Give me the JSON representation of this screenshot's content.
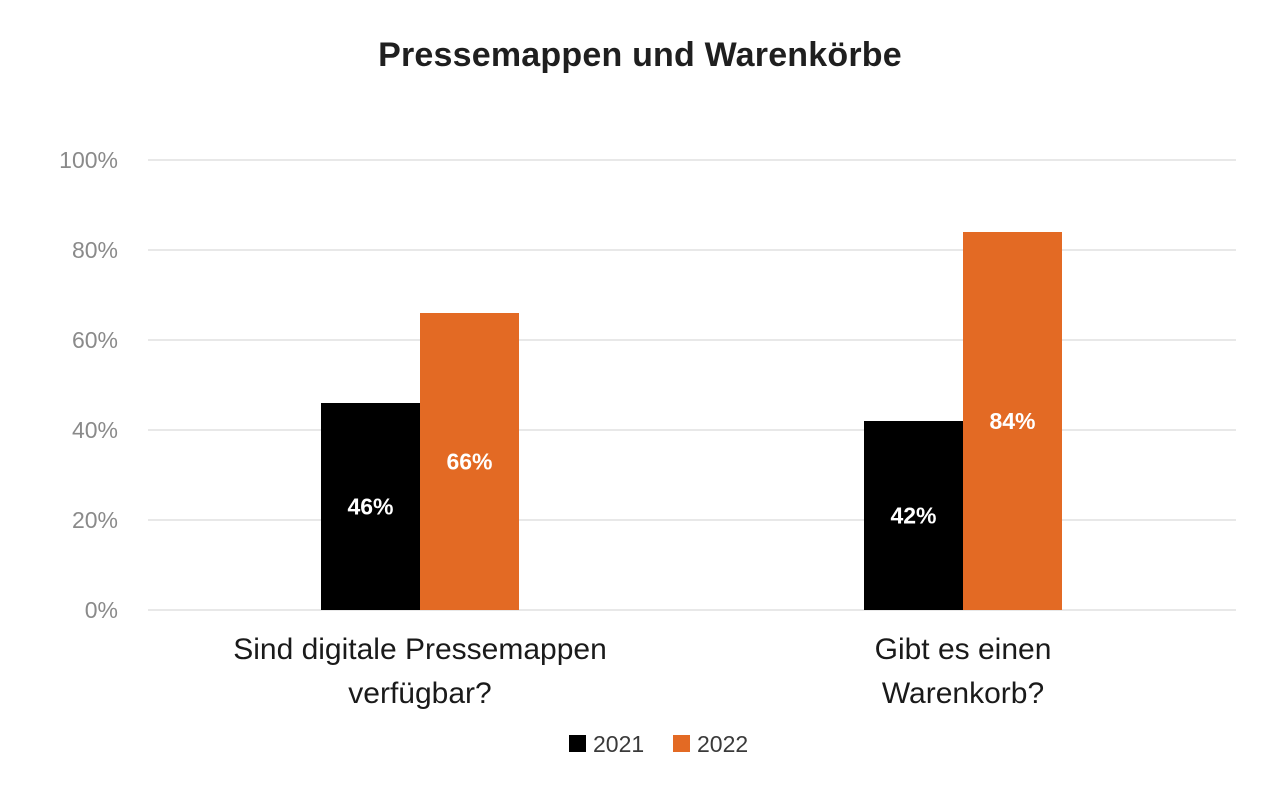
{
  "chart_data": {
    "type": "bar",
    "title": "Pressemappen und Warenkörbe",
    "xlabel": "",
    "ylabel": "",
    "ylim": [
      0,
      100
    ],
    "y_ticks": [
      "0%",
      "20%",
      "40%",
      "60%",
      "80%",
      "100%"
    ],
    "y_tick_values": [
      0,
      20,
      40,
      60,
      80,
      100
    ],
    "grid": true,
    "legend_position": "bottom",
    "categories": [
      [
        "Sind digitale Pressemappen",
        "verfügbar?"
      ],
      [
        "Gibt es einen",
        "Warenkorb?"
      ]
    ],
    "series": [
      {
        "name": "2021",
        "color": "#000000",
        "values": [
          46,
          42
        ],
        "labels": [
          "46%",
          "42%"
        ]
      },
      {
        "name": "2022",
        "color": "#e36a24",
        "values": [
          66,
          84
        ],
        "labels": [
          "66%",
          "84%"
        ]
      }
    ]
  }
}
